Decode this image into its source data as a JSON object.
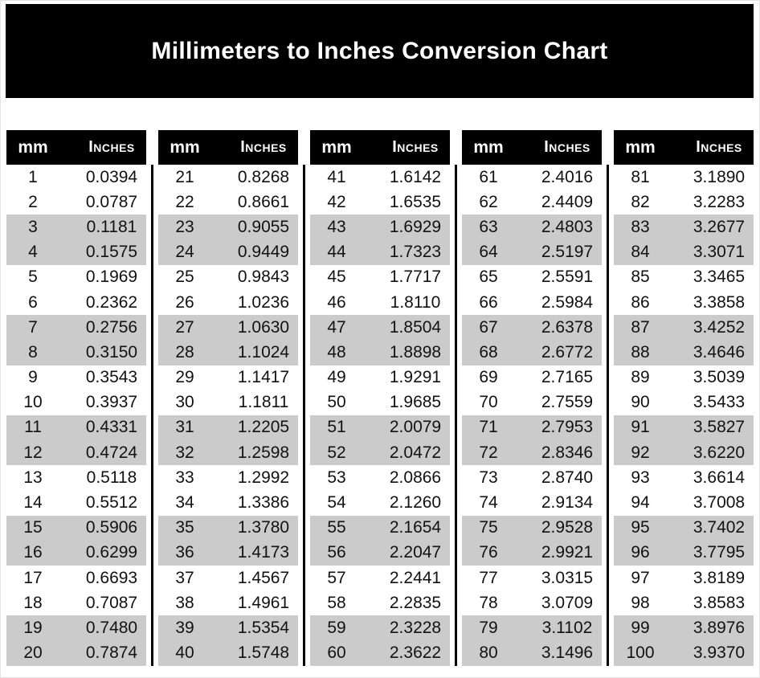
{
  "page": {
    "title": "Millimeters to Inches Conversion Chart"
  },
  "table_header": {
    "mm_label": "mm",
    "inches_label": "Inches"
  },
  "colors": {
    "banner_bg": "#000000",
    "banner_text": "#ffffff",
    "header_bg": "#000000",
    "header_text": "#ffffff",
    "stripe_gray": "#cbcbcb",
    "row_text": "#121212",
    "background": "#ffffff"
  },
  "tables": [
    {
      "range": "1-20",
      "rows": [
        [
          "1",
          "0.0394"
        ],
        [
          "2",
          "0.0787"
        ],
        [
          "3",
          "0.1181"
        ],
        [
          "4",
          "0.1575"
        ],
        [
          "5",
          "0.1969"
        ],
        [
          "6",
          "0.2362"
        ],
        [
          "7",
          "0.2756"
        ],
        [
          "8",
          "0.3150"
        ],
        [
          "9",
          "0.3543"
        ],
        [
          "10",
          "0.3937"
        ],
        [
          "11",
          "0.4331"
        ],
        [
          "12",
          "0.4724"
        ],
        [
          "13",
          "0.5118"
        ],
        [
          "14",
          "0.5512"
        ],
        [
          "15",
          "0.5906"
        ],
        [
          "16",
          "0.6299"
        ],
        [
          "17",
          "0.6693"
        ],
        [
          "18",
          "0.7087"
        ],
        [
          "19",
          "0.7480"
        ],
        [
          "20",
          "0.7874"
        ]
      ]
    },
    {
      "range": "21-40",
      "rows": [
        [
          "21",
          "0.8268"
        ],
        [
          "22",
          "0.8661"
        ],
        [
          "23",
          "0.9055"
        ],
        [
          "24",
          "0.9449"
        ],
        [
          "25",
          "0.9843"
        ],
        [
          "26",
          "1.0236"
        ],
        [
          "27",
          "1.0630"
        ],
        [
          "28",
          "1.1024"
        ],
        [
          "29",
          "1.1417"
        ],
        [
          "30",
          "1.1811"
        ],
        [
          "31",
          "1.2205"
        ],
        [
          "32",
          "1.2598"
        ],
        [
          "33",
          "1.2992"
        ],
        [
          "34",
          "1.3386"
        ],
        [
          "35",
          "1.3780"
        ],
        [
          "36",
          "1.4173"
        ],
        [
          "37",
          "1.4567"
        ],
        [
          "38",
          "1.4961"
        ],
        [
          "39",
          "1.5354"
        ],
        [
          "40",
          "1.5748"
        ]
      ]
    },
    {
      "range": "41-60",
      "rows": [
        [
          "41",
          "1.6142"
        ],
        [
          "42",
          "1.6535"
        ],
        [
          "43",
          "1.6929"
        ],
        [
          "44",
          "1.7323"
        ],
        [
          "45",
          "1.7717"
        ],
        [
          "46",
          "1.8110"
        ],
        [
          "47",
          "1.8504"
        ],
        [
          "48",
          "1.8898"
        ],
        [
          "49",
          "1.9291"
        ],
        [
          "50",
          "1.9685"
        ],
        [
          "51",
          "2.0079"
        ],
        [
          "52",
          "2.0472"
        ],
        [
          "53",
          "2.0866"
        ],
        [
          "54",
          "2.1260"
        ],
        [
          "55",
          "2.1654"
        ],
        [
          "56",
          "2.2047"
        ],
        [
          "57",
          "2.2441"
        ],
        [
          "58",
          "2.2835"
        ],
        [
          "59",
          "2.3228"
        ],
        [
          "60",
          "2.3622"
        ]
      ]
    },
    {
      "range": "61-80",
      "rows": [
        [
          "61",
          "2.4016"
        ],
        [
          "62",
          "2.4409"
        ],
        [
          "63",
          "2.4803"
        ],
        [
          "64",
          "2.5197"
        ],
        [
          "65",
          "2.5591"
        ],
        [
          "66",
          "2.5984"
        ],
        [
          "67",
          "2.6378"
        ],
        [
          "68",
          "2.6772"
        ],
        [
          "69",
          "2.7165"
        ],
        [
          "70",
          "2.7559"
        ],
        [
          "71",
          "2.7953"
        ],
        [
          "72",
          "2.8346"
        ],
        [
          "73",
          "2.8740"
        ],
        [
          "74",
          "2.9134"
        ],
        [
          "75",
          "2.9528"
        ],
        [
          "76",
          "2.9921"
        ],
        [
          "77",
          "3.0315"
        ],
        [
          "78",
          "3.0709"
        ],
        [
          "79",
          "3.1102"
        ],
        [
          "80",
          "3.1496"
        ]
      ]
    },
    {
      "range": "81-100",
      "rows": [
        [
          "81",
          "3.1890"
        ],
        [
          "82",
          "3.2283"
        ],
        [
          "83",
          "3.2677"
        ],
        [
          "84",
          "3.3071"
        ],
        [
          "85",
          "3.3465"
        ],
        [
          "86",
          "3.3858"
        ],
        [
          "87",
          "3.4252"
        ],
        [
          "88",
          "3.4646"
        ],
        [
          "89",
          "3.5039"
        ],
        [
          "90",
          "3.5433"
        ],
        [
          "91",
          "3.5827"
        ],
        [
          "92",
          "3.6220"
        ],
        [
          "93",
          "3.6614"
        ],
        [
          "94",
          "3.7008"
        ],
        [
          "95",
          "3.7402"
        ],
        [
          "96",
          "3.7795"
        ],
        [
          "97",
          "3.8189"
        ],
        [
          "98",
          "3.8583"
        ],
        [
          "99",
          "3.8976"
        ],
        [
          "100",
          "3.9370"
        ]
      ]
    }
  ]
}
